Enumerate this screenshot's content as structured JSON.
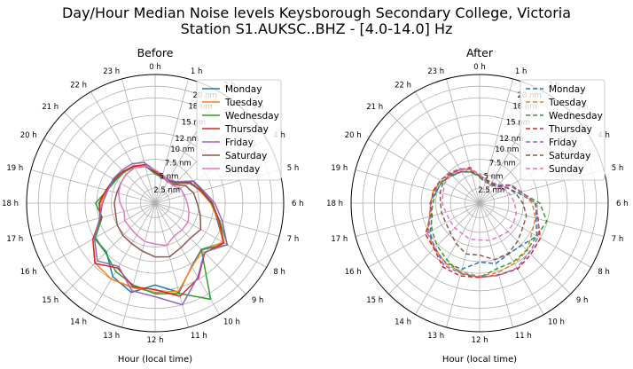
{
  "figure": {
    "title_line1": "Day/Hour Median Noise levels Keysborough Secondary College, Victoria",
    "title_line2": "Station S1.AUKSC..BHZ - [4.0-14.0] Hz"
  },
  "colors": {
    "Monday": "#1f77b4",
    "Tuesday": "#ff7f0e",
    "Wednesday": "#2ca02c",
    "Thursday": "#d62728",
    "Friday": "#9467bd",
    "Saturday": "#8c564b",
    "Sunday": "#e377c2"
  },
  "chart_data": [
    {
      "type": "line",
      "projection": "polar",
      "title": "Before",
      "xlabel": "Hour (local time)",
      "theta_direction": "clockwise",
      "theta_zero": "top",
      "theta_ticklabels": [
        "0 h",
        "1 h",
        "2 h",
        "3 h",
        "4 h",
        "5 h",
        "6 h",
        "7 h",
        "8 h",
        "9 h",
        "10 h",
        "11 h",
        "12 h",
        "13 h",
        "14 h",
        "15 h",
        "16 h",
        "17 h",
        "18 h",
        "19 h",
        "20 h",
        "21 h",
        "22 h",
        "23 h"
      ],
      "r_ticks": [
        2.5,
        5,
        7.5,
        10,
        12,
        15,
        18,
        20
      ],
      "r_ticklabels": [
        "2.5 nm",
        "5 nm",
        "7.5 nm",
        "10 nm",
        "12 nm",
        "15 nm",
        "18 nm",
        "20 nm"
      ],
      "rlim": [
        0,
        22
      ],
      "grid": true,
      "legend_position": "top-right",
      "line_style": "solid",
      "x": [
        0,
        1,
        2,
        3,
        4,
        5,
        6,
        7,
        8,
        9,
        10,
        11,
        12,
        13,
        14,
        15,
        16,
        17,
        18,
        19,
        20,
        21,
        22,
        23
      ],
      "series": [
        {
          "name": "Monday",
          "values": [
            5.0,
            4.5,
            4.5,
            5.0,
            7.5,
            8.3,
            9.8,
            11.0,
            13.5,
            11.2,
            12.5,
            15.8,
            14.0,
            15.8,
            14.5,
            11.8,
            12.0,
            9.8,
            9.5,
            8.5,
            8.0,
            7.5,
            7.2,
            6.6
          ]
        },
        {
          "name": "Tuesday",
          "values": [
            5.2,
            4.7,
            4.6,
            5.1,
            7.0,
            8.0,
            9.5,
            11.2,
            13.4,
            11.4,
            12.6,
            15.6,
            15.3,
            14.9,
            15.0,
            14.5,
            12.3,
            9.7,
            9.3,
            8.6,
            8.2,
            7.6,
            7.3,
            6.8
          ]
        },
        {
          "name": "Wednesday",
          "values": [
            5.0,
            4.6,
            4.4,
            4.8,
            6.8,
            8.2,
            9.6,
            11.4,
            14.3,
            11.2,
            19.0,
            16.0,
            15.5,
            14.5,
            13.5,
            12.0,
            11.8,
            9.4,
            10.2,
            8.5,
            7.8,
            7.5,
            7.2,
            6.8
          ]
        },
        {
          "name": "Thursday",
          "values": [
            5.3,
            4.7,
            4.5,
            5.0,
            7.0,
            8.1,
            9.8,
            11.3,
            13.6,
            12.0,
            14.8,
            16.5,
            14.8,
            14.8,
            12.8,
            14.6,
            12.3,
            9.6,
            9.6,
            8.7,
            8.2,
            7.7,
            7.3,
            6.8
          ]
        },
        {
          "name": "Friday",
          "values": [
            5.6,
            4.9,
            4.6,
            5.2,
            7.6,
            8.5,
            10.2,
            11.9,
            14.2,
            11.9,
            14.6,
            18.0,
            16.0,
            15.5,
            12.5,
            14.0,
            12.0,
            9.8,
            9.0,
            8.4,
            8.3,
            8.0,
            7.8,
            7.2
          ]
        },
        {
          "name": "Saturday",
          "values": [
            5.5,
            4.8,
            4.2,
            4.5,
            6.0,
            6.8,
            7.2,
            8.0,
            9.0,
            8.5,
            8.8,
            9.5,
            9.2,
            8.5,
            8.0,
            7.8,
            7.5,
            7.0,
            7.0,
            6.8,
            6.8,
            7.0,
            7.0,
            6.5
          ]
        },
        {
          "name": "Sunday",
          "values": [
            5.7,
            5.0,
            4.3,
            4.3,
            5.0,
            5.2,
            5.5,
            6.0,
            6.5,
            6.5,
            6.5,
            7.5,
            7.0,
            6.8,
            6.3,
            6.0,
            6.0,
            5.5,
            6.0,
            6.5,
            6.8,
            7.0,
            7.0,
            6.6
          ]
        }
      ]
    },
    {
      "type": "line",
      "projection": "polar",
      "title": "After",
      "xlabel": "Hour (local time)",
      "theta_direction": "clockwise",
      "theta_zero": "top",
      "theta_ticklabels": [
        "0 h",
        "1 h",
        "2 h",
        "3 h",
        "4 h",
        "5 h",
        "6 h",
        "7 h",
        "8 h",
        "9 h",
        "10 h",
        "11 h",
        "12 h",
        "13 h",
        "14 h",
        "15 h",
        "16 h",
        "17 h",
        "18 h",
        "19 h",
        "20 h",
        "21 h",
        "22 h",
        "23 h"
      ],
      "r_ticks": [
        2.5,
        5,
        7.5,
        10,
        12,
        15,
        18,
        20
      ],
      "r_ticklabels": [
        "2.5 nm",
        "5 nm",
        "7.5 nm",
        "10 nm",
        "12 nm",
        "15 nm",
        "18 nm",
        "20 nm"
      ],
      "rlim": [
        0,
        22
      ],
      "grid": true,
      "legend_position": "top-right",
      "line_style": "dashed",
      "x": [
        0,
        1,
        2,
        3,
        4,
        5,
        6,
        7,
        8,
        9,
        10,
        11,
        12,
        13,
        14,
        15,
        16,
        17,
        18,
        19,
        20,
        21,
        22,
        23
      ],
      "series": [
        {
          "name": "Monday",
          "values": [
            4.6,
            3.9,
            3.7,
            4.0,
            5.3,
            6.8,
            9.7,
            10.0,
            11.3,
            10.2,
            10.0,
            10.7,
            10.1,
            11.7,
            11.7,
            11.0,
            9.8,
            8.4,
            8.5,
            7.7,
            7.4,
            6.7,
            6.2,
            5.5
          ]
        },
        {
          "name": "Tuesday",
          "values": [
            4.6,
            4.2,
            4.1,
            4.4,
            6.2,
            7.3,
            9.0,
            9.9,
            10.3,
            11.5,
            11.9,
            12.3,
            12.5,
            12.2,
            11.8,
            10.9,
            10.3,
            8.9,
            8.4,
            8.2,
            7.5,
            7.0,
            6.7,
            6.0
          ]
        },
        {
          "name": "Wednesday",
          "values": [
            4.4,
            3.7,
            3.8,
            4.2,
            6.0,
            7.2,
            10.3,
            11.9,
            11.3,
            11.4,
            11.6,
            11.6,
            12.7,
            12.5,
            11.2,
            10.3,
            9.4,
            8.6,
            8.0,
            7.7,
            7.4,
            6.6,
            6.2,
            5.5
          ]
        },
        {
          "name": "Thursday",
          "values": [
            4.7,
            4.1,
            3.9,
            4.3,
            6.2,
            7.4,
            9.5,
            10.3,
            12.0,
            12.4,
            13.0,
            12.7,
            12.7,
            12.9,
            12.6,
            11.0,
            10.7,
            8.7,
            8.3,
            8.2,
            7.8,
            7.1,
            6.6,
            6.3
          ]
        },
        {
          "name": "Friday",
          "values": [
            4.8,
            4.2,
            4.1,
            4.4,
            6.0,
            7.4,
            9.5,
            10.4,
            11.6,
            12.0,
            12.8,
            12.8,
            12.7,
            12.4,
            12.3,
            10.7,
            10.2,
            8.8,
            8.4,
            7.9,
            7.8,
            7.3,
            6.8,
            6.0
          ]
        },
        {
          "name": "Saturday",
          "values": [
            4.7,
            4.1,
            3.9,
            4.2,
            5.4,
            6.4,
            7.4,
            8.3,
            8.5,
            9.2,
            9.9,
            10.0,
            8.9,
            9.0,
            8.0,
            7.1,
            6.7,
            6.7,
            6.7,
            7.0,
            7.2,
            6.9,
            6.2,
            5.6
          ]
        },
        {
          "name": "Sunday",
          "values": [
            5.0,
            3.8,
            3.6,
            3.6,
            4.8,
            5.5,
            6.0,
            6.5,
            6.7,
            6.9,
            6.6,
            6.6,
            6.3,
            6.4,
            6.0,
            6.0,
            5.9,
            6.0,
            6.4,
            6.5,
            6.9,
            6.9,
            6.5,
            5.9
          ]
        }
      ]
    }
  ]
}
